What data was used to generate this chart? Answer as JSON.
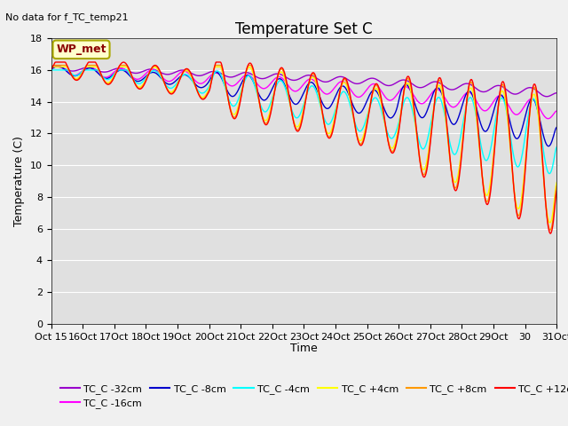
{
  "title": "Temperature Set C",
  "subtitle": "No data for f_TC_temp21",
  "xlabel": "Time",
  "ylabel": "Temperature (C)",
  "ylim": [
    0,
    18
  ],
  "yticks": [
    0,
    2,
    4,
    6,
    8,
    10,
    12,
    14,
    16,
    18
  ],
  "wp_met_label": "WP_met",
  "series_colors": {
    "TC_C -32cm": "#9900cc",
    "TC_C -16cm": "#ff00ff",
    "TC_C -8cm": "#0000cc",
    "TC_C -4cm": "#00ffff",
    "TC_C +4cm": "#ffff00",
    "TC_C +8cm": "#ff9900",
    "TC_C +12cm": "#ff0000"
  },
  "fig_facecolor": "#f0f0f0",
  "ax_facecolor": "#e0e0e0",
  "grid_color": "#ffffff",
  "title_fontsize": 12,
  "axis_label_fontsize": 9,
  "tick_fontsize": 8,
  "legend_fontsize": 8,
  "n_days": 16,
  "n_pts_per_day": 48
}
